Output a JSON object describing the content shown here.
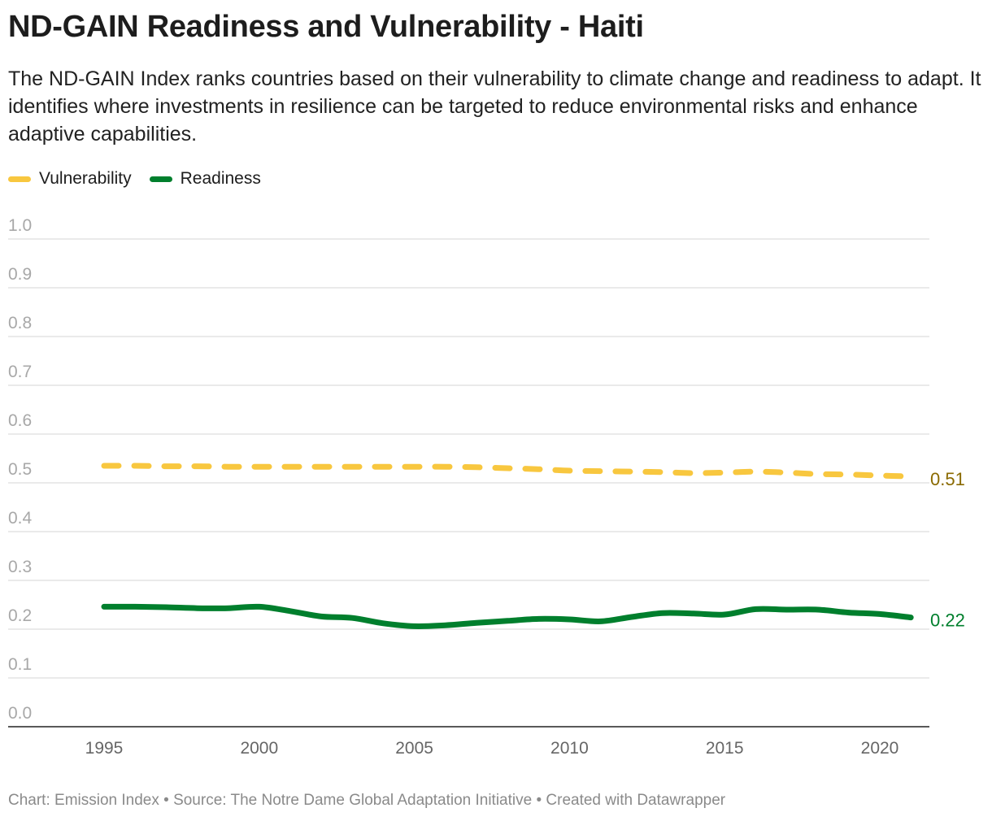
{
  "header": {
    "title": "ND-GAIN Readiness and Vulnerability - Haiti",
    "description": "The ND-GAIN Index ranks countries based on their vulnerability to climate change and readiness to adapt. It identifies where investments in resilience can be targeted to reduce environmental risks and enhance adaptive capabilities."
  },
  "footer": {
    "text": "Chart: Emission Index • Source: The Notre Dame Global Adaptation Initiative • Created with Datawrapper"
  },
  "chart_data": {
    "type": "line",
    "title": "ND-GAIN Readiness and Vulnerability - Haiti",
    "xlabel": "",
    "ylabel": "",
    "xlim": [
      1995,
      2021
    ],
    "ylim": [
      0,
      1
    ],
    "x_ticks": [
      "1995",
      "2000",
      "2005",
      "2010",
      "2015",
      "2020"
    ],
    "y_ticks": [
      "0.0",
      "0.1",
      "0.2",
      "0.3",
      "0.4",
      "0.5",
      "0.6",
      "0.7",
      "0.8",
      "0.9",
      "1.0"
    ],
    "grid": true,
    "legend_position": "top-left",
    "x": [
      1995,
      1996,
      1997,
      1998,
      1999,
      2000,
      2001,
      2002,
      2003,
      2004,
      2005,
      2006,
      2007,
      2008,
      2009,
      2010,
      2011,
      2012,
      2013,
      2014,
      2015,
      2016,
      2017,
      2018,
      2019,
      2020,
      2021
    ],
    "series": [
      {
        "name": "Vulnerability",
        "color": "#f8c73f",
        "style": "dashed",
        "end_label": "0.51",
        "end_label_color": "#8a6a00",
        "values": [
          0.535,
          0.535,
          0.534,
          0.534,
          0.533,
          0.533,
          0.533,
          0.533,
          0.533,
          0.533,
          0.533,
          0.533,
          0.532,
          0.53,
          0.528,
          0.525,
          0.524,
          0.523,
          0.522,
          0.52,
          0.521,
          0.523,
          0.521,
          0.518,
          0.517,
          0.515,
          0.513
        ]
      },
      {
        "name": "Readiness",
        "color": "#007f2d",
        "style": "solid",
        "end_label": "0.22",
        "end_label_color": "#007f2d",
        "values": [
          0.246,
          0.246,
          0.245,
          0.243,
          0.243,
          0.246,
          0.237,
          0.226,
          0.223,
          0.212,
          0.206,
          0.208,
          0.213,
          0.217,
          0.221,
          0.22,
          0.216,
          0.225,
          0.233,
          0.232,
          0.23,
          0.241,
          0.24,
          0.24,
          0.234,
          0.231,
          0.224
        ]
      }
    ]
  }
}
